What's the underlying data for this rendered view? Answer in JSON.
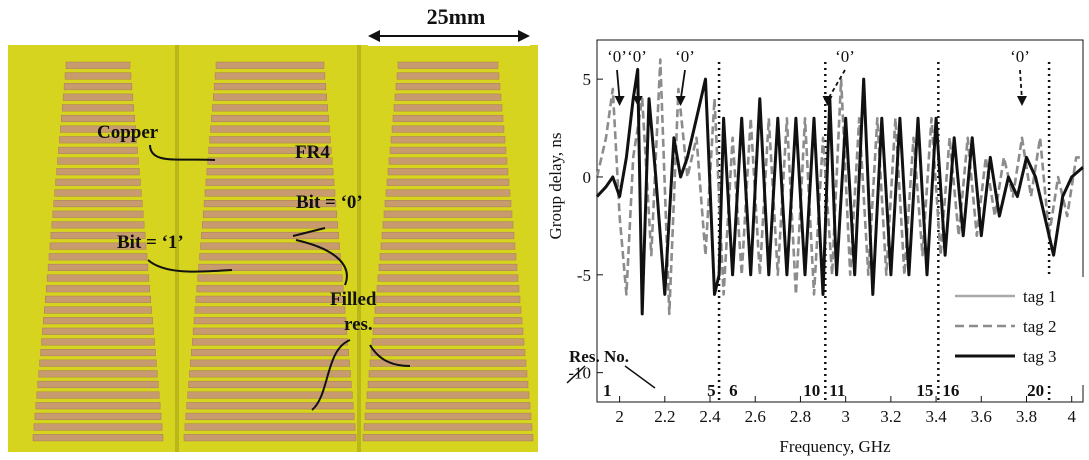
{
  "photo": {
    "scale_label": "25mm",
    "labels": {
      "copper": "Copper",
      "fr4": "FR4",
      "bit1": "Bit = ‘1’",
      "bit0": "Bit = ‘0’",
      "filled_line1": "Filled",
      "filled_line2": "res."
    },
    "colors": {
      "substrate": "#d8d81c",
      "copper": "#c79a6f"
    }
  },
  "chart_data": {
    "type": "line",
    "title": "",
    "xlabel": "Frequency, GHz",
    "ylabel": "Group delay, ns",
    "xlim": [
      1.9,
      4.05
    ],
    "ylim": [
      -11.5,
      7
    ],
    "xticks": [
      2,
      2.2,
      2.4,
      2.6,
      2.8,
      3,
      3.2,
      3.4,
      3.6,
      3.8,
      4
    ],
    "yticks": [
      5,
      0,
      -5,
      -10
    ],
    "ytick_labels": [
      "5",
      "0",
      "-5",
      "-10"
    ],
    "grid": false,
    "legend_position": "bottom-right",
    "series": [
      {
        "name": "tag 1",
        "color": "#a8a8a8",
        "style": "solid"
      },
      {
        "name": "tag 2",
        "color": "#8c8c8c",
        "style": "dashed",
        "x": [
          1.9,
          1.94,
          1.97,
          2.0,
          2.03,
          2.06,
          2.1,
          2.14,
          2.18,
          2.22,
          2.26,
          2.3,
          2.34,
          2.38,
          2.42,
          2.46,
          2.5,
          2.54,
          2.58,
          2.62,
          2.66,
          2.7,
          2.74,
          2.78,
          2.82,
          2.86,
          2.9,
          2.94,
          2.98,
          3.02,
          3.06,
          3.1,
          3.14,
          3.18,
          3.22,
          3.26,
          3.3,
          3.34,
          3.38,
          3.42,
          3.46,
          3.5,
          3.54,
          3.58,
          3.62,
          3.66,
          3.7,
          3.74,
          3.78,
          3.82,
          3.86,
          3.9,
          3.94,
          3.98,
          4.02,
          4.05
        ],
        "y": [
          0,
          2,
          4.5,
          -2,
          -6,
          1,
          4,
          -4,
          6,
          -7,
          4.5,
          0,
          2,
          -4,
          4,
          -6,
          2,
          -5,
          3,
          -5,
          3,
          -5,
          3,
          -6,
          3,
          -6,
          2,
          -5,
          5,
          -5,
          3,
          -5,
          3,
          -5,
          3,
          -5,
          2,
          -4,
          3,
          -4,
          2,
          -3,
          2,
          -3,
          1,
          -2,
          1,
          -1,
          2,
          -1,
          2,
          -3,
          0,
          -2,
          1,
          1
        ]
      },
      {
        "name": "tag 3",
        "color": "#111111",
        "style": "solid",
        "x": [
          1.9,
          1.94,
          1.97,
          2.0,
          2.03,
          2.06,
          2.08,
          2.1,
          2.13,
          2.16,
          2.2,
          2.24,
          2.27,
          2.3,
          2.34,
          2.38,
          2.42,
          2.44,
          2.46,
          2.5,
          2.54,
          2.58,
          2.62,
          2.66,
          2.7,
          2.74,
          2.78,
          2.82,
          2.86,
          2.9,
          2.93,
          2.96,
          3.0,
          3.04,
          3.08,
          3.12,
          3.16,
          3.2,
          3.24,
          3.28,
          3.32,
          3.36,
          3.4,
          3.44,
          3.48,
          3.52,
          3.56,
          3.6,
          3.64,
          3.68,
          3.72,
          3.76,
          3.8,
          3.84,
          3.88,
          3.92,
          3.96,
          4.0,
          4.05
        ],
        "y": [
          -1,
          -0.5,
          0,
          -1,
          1,
          4,
          5.5,
          -7,
          4,
          0,
          -6,
          2,
          0,
          1,
          3,
          5,
          -6,
          -5,
          3,
          -5,
          3,
          -5,
          4,
          -5,
          3,
          -5,
          3,
          -5,
          3,
          -6,
          4,
          -5,
          3,
          -5,
          5,
          -6,
          3,
          -5,
          3,
          -5,
          3,
          -5,
          3,
          -4,
          2,
          -3,
          2,
          -3,
          1,
          -2,
          0,
          -1,
          1,
          0,
          -2,
          -4,
          -1,
          0,
          0.5
        ]
      }
    ],
    "markers": {
      "dotted_lines_x": [
        2.44,
        2.91,
        3.41,
        3.9
      ],
      "range_labels": [
        "1",
        "5",
        "6",
        "10",
        "11",
        "15",
        "16",
        "20"
      ],
      "res_no_label": "Res. No.",
      "zero_annotation": "‘0’"
    }
  }
}
